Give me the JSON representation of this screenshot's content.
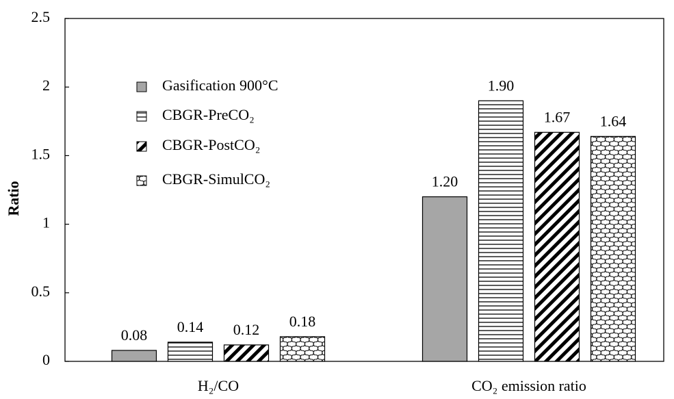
{
  "chart_data": {
    "type": "bar",
    "y_label": "Ratio",
    "categories": [
      "H₂/CO",
      "CO₂ emission ratio"
    ],
    "series": [
      {
        "name": "Gasification 900°C",
        "color": "#a6a6a6",
        "pattern": "solid",
        "values": [
          0.08,
          1.2
        ],
        "value_labels": [
          "0.08",
          "1.20"
        ]
      },
      {
        "name": "CBGR-PreCO₂",
        "color": "#000000",
        "pattern": "horizontal",
        "values": [
          0.14,
          1.9
        ],
        "value_labels": [
          "0.14",
          "1.90"
        ]
      },
      {
        "name": "CBGR-PostCO₂",
        "color": "#000000",
        "pattern": "diagonal",
        "values": [
          0.12,
          1.67
        ],
        "value_labels": [
          "0.12",
          "1.67"
        ]
      },
      {
        "name": "CBGR-SimulCO₂",
        "color": "#000000",
        "pattern": "crosshatch",
        "values": [
          0.18,
          1.64
        ],
        "value_labels": [
          "0.18",
          "1.64"
        ]
      }
    ],
    "ylim": [
      0,
      2.5
    ],
    "yticks": [
      0,
      0.5,
      1,
      1.5,
      2,
      2.5
    ],
    "grid": false,
    "legend": "upper left"
  }
}
